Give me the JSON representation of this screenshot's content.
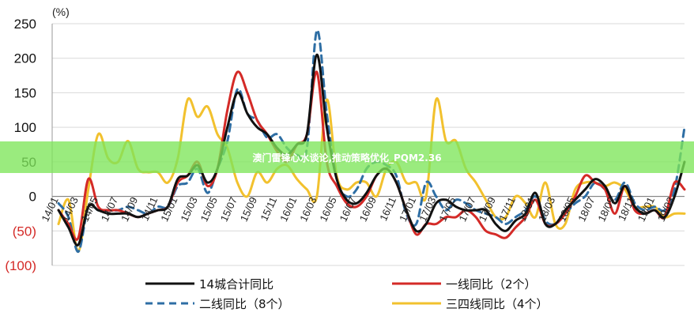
{
  "overlay": {
    "banner_text": "澳门雷锋心水谈论,推动策略优化_PQM2.36"
  },
  "chart_data": {
    "type": "line",
    "title": "",
    "unit_label": "(%)",
    "xlabel": "",
    "ylabel": "",
    "ylim": [
      -100,
      250
    ],
    "yticks": [
      250,
      200,
      150,
      100,
      50,
      0,
      -50,
      -100
    ],
    "ytick_labels": [
      "250",
      "200",
      "150",
      "100",
      "50",
      "0",
      "(50)",
      "(100)"
    ],
    "grid": true,
    "legend_position": "bottom",
    "x": [
      "14/01",
      "14/02",
      "14/03",
      "14/04",
      "14/05",
      "14/06",
      "14/07",
      "14/08",
      "14/09",
      "14/10",
      "14/11",
      "14/12",
      "15/01",
      "15/02",
      "15/03",
      "15/04",
      "15/05",
      "15/06",
      "15/07",
      "15/08",
      "15/09",
      "15/10",
      "15/11",
      "15/12",
      "16/01",
      "16/02",
      "16/03",
      "16/04",
      "16/05",
      "16/06",
      "16/07",
      "16/08",
      "16/09",
      "16/10",
      "16/11",
      "16/12",
      "17/01",
      "17/02",
      "17/03",
      "17/04",
      "17/05",
      "17/06",
      "17/07",
      "17/08",
      "17/09",
      "17/10",
      "17/11",
      "17/12",
      "18/01",
      "18/02",
      "18/03",
      "18/04",
      "18/05",
      "18/06",
      "18/07",
      "18/08",
      "18/09",
      "18/10",
      "18/11",
      "18/12",
      "19/01",
      "19/02",
      "19/03",
      "19/04"
    ],
    "xtick_labels": [
      "14/01",
      "14/03",
      "14/05",
      "14/07",
      "14/09",
      "14/11",
      "15/01",
      "15/03",
      "15/05",
      "15/07",
      "15/09",
      "15/11",
      "16/01",
      "16/03",
      "16/05",
      "16/07",
      "16/09",
      "16/11",
      "17/01",
      "17/03",
      "17/05",
      "17/07",
      "17/09",
      "17/11",
      "18/01",
      "18/03",
      "18/05",
      "18/07",
      "18/09",
      "18/11",
      "19/01",
      "19/03"
    ],
    "series": [
      {
        "name": "14城合计同比",
        "color": "#111111",
        "dash": "solid",
        "values": [
          -20,
          -45,
          -70,
          -15,
          -20,
          -25,
          -25,
          -25,
          -30,
          -25,
          -20,
          -15,
          25,
          30,
          45,
          20,
          40,
          100,
          150,
          120,
          100,
          90,
          70,
          60,
          75,
          90,
          205,
          100,
          25,
          -5,
          -10,
          5,
          30,
          40,
          20,
          -20,
          -50,
          -40,
          -10,
          -5,
          -15,
          -20,
          -20,
          -20,
          -40,
          -50,
          -35,
          -25,
          5,
          -40,
          -40,
          -20,
          -5,
          10,
          25,
          15,
          -10,
          15,
          -15,
          -25,
          -20,
          -30,
          0,
          50
        ]
      },
      {
        "name": "一线同比（2个）",
        "color": "#d42a27",
        "dash": "solid",
        "values": [
          -20,
          -40,
          -60,
          25,
          -15,
          -20,
          -20,
          -25,
          -30,
          -25,
          -20,
          -15,
          20,
          30,
          50,
          15,
          40,
          125,
          180,
          150,
          110,
          90,
          65,
          50,
          75,
          90,
          180,
          50,
          15,
          -10,
          -15,
          0,
          30,
          40,
          20,
          -20,
          -55,
          -40,
          -40,
          -30,
          -30,
          -20,
          -30,
          -50,
          -55,
          -60,
          -45,
          -30,
          -5,
          -40,
          -40,
          -25,
          0,
          30,
          20,
          10,
          -25,
          15,
          -20,
          -25,
          -20,
          -30,
          20,
          10
        ]
      },
      {
        "name": "二线同比（8个）",
        "color": "#2e6ea4",
        "dash": "dashed",
        "values": [
          -10,
          -30,
          -80,
          -15,
          -20,
          -20,
          -20,
          -15,
          -20,
          -25,
          -15,
          -15,
          15,
          20,
          40,
          5,
          40,
          80,
          155,
          120,
          110,
          85,
          90,
          70,
          60,
          70,
          240,
          120,
          25,
          0,
          10,
          40,
          50,
          45,
          30,
          -25,
          -40,
          20,
          0,
          -20,
          -5,
          -10,
          -20,
          -25,
          -30,
          -40,
          -30,
          -20,
          0,
          -35,
          -40,
          -25,
          -10,
          0,
          20,
          10,
          -5,
          20,
          -10,
          -20,
          -15,
          -20,
          10,
          100
        ]
      },
      {
        "name": "三四线同比（4个）",
        "color": "#f2c12e",
        "dash": "solid",
        "values": [
          -40,
          -5,
          -80,
          10,
          90,
          55,
          50,
          80,
          40,
          35,
          35,
          20,
          55,
          140,
          115,
          130,
          90,
          70,
          20,
          0,
          35,
          20,
          40,
          45,
          25,
          10,
          0,
          140,
          30,
          10,
          20,
          20,
          0,
          40,
          50,
          20,
          20,
          0,
          140,
          80,
          80,
          40,
          20,
          -5,
          -30,
          -30,
          0,
          -10,
          -30,
          20,
          -40,
          -40,
          10,
          20,
          20,
          15,
          20,
          10,
          -15,
          -15,
          -15,
          -30,
          -25,
          -25
        ]
      }
    ]
  }
}
